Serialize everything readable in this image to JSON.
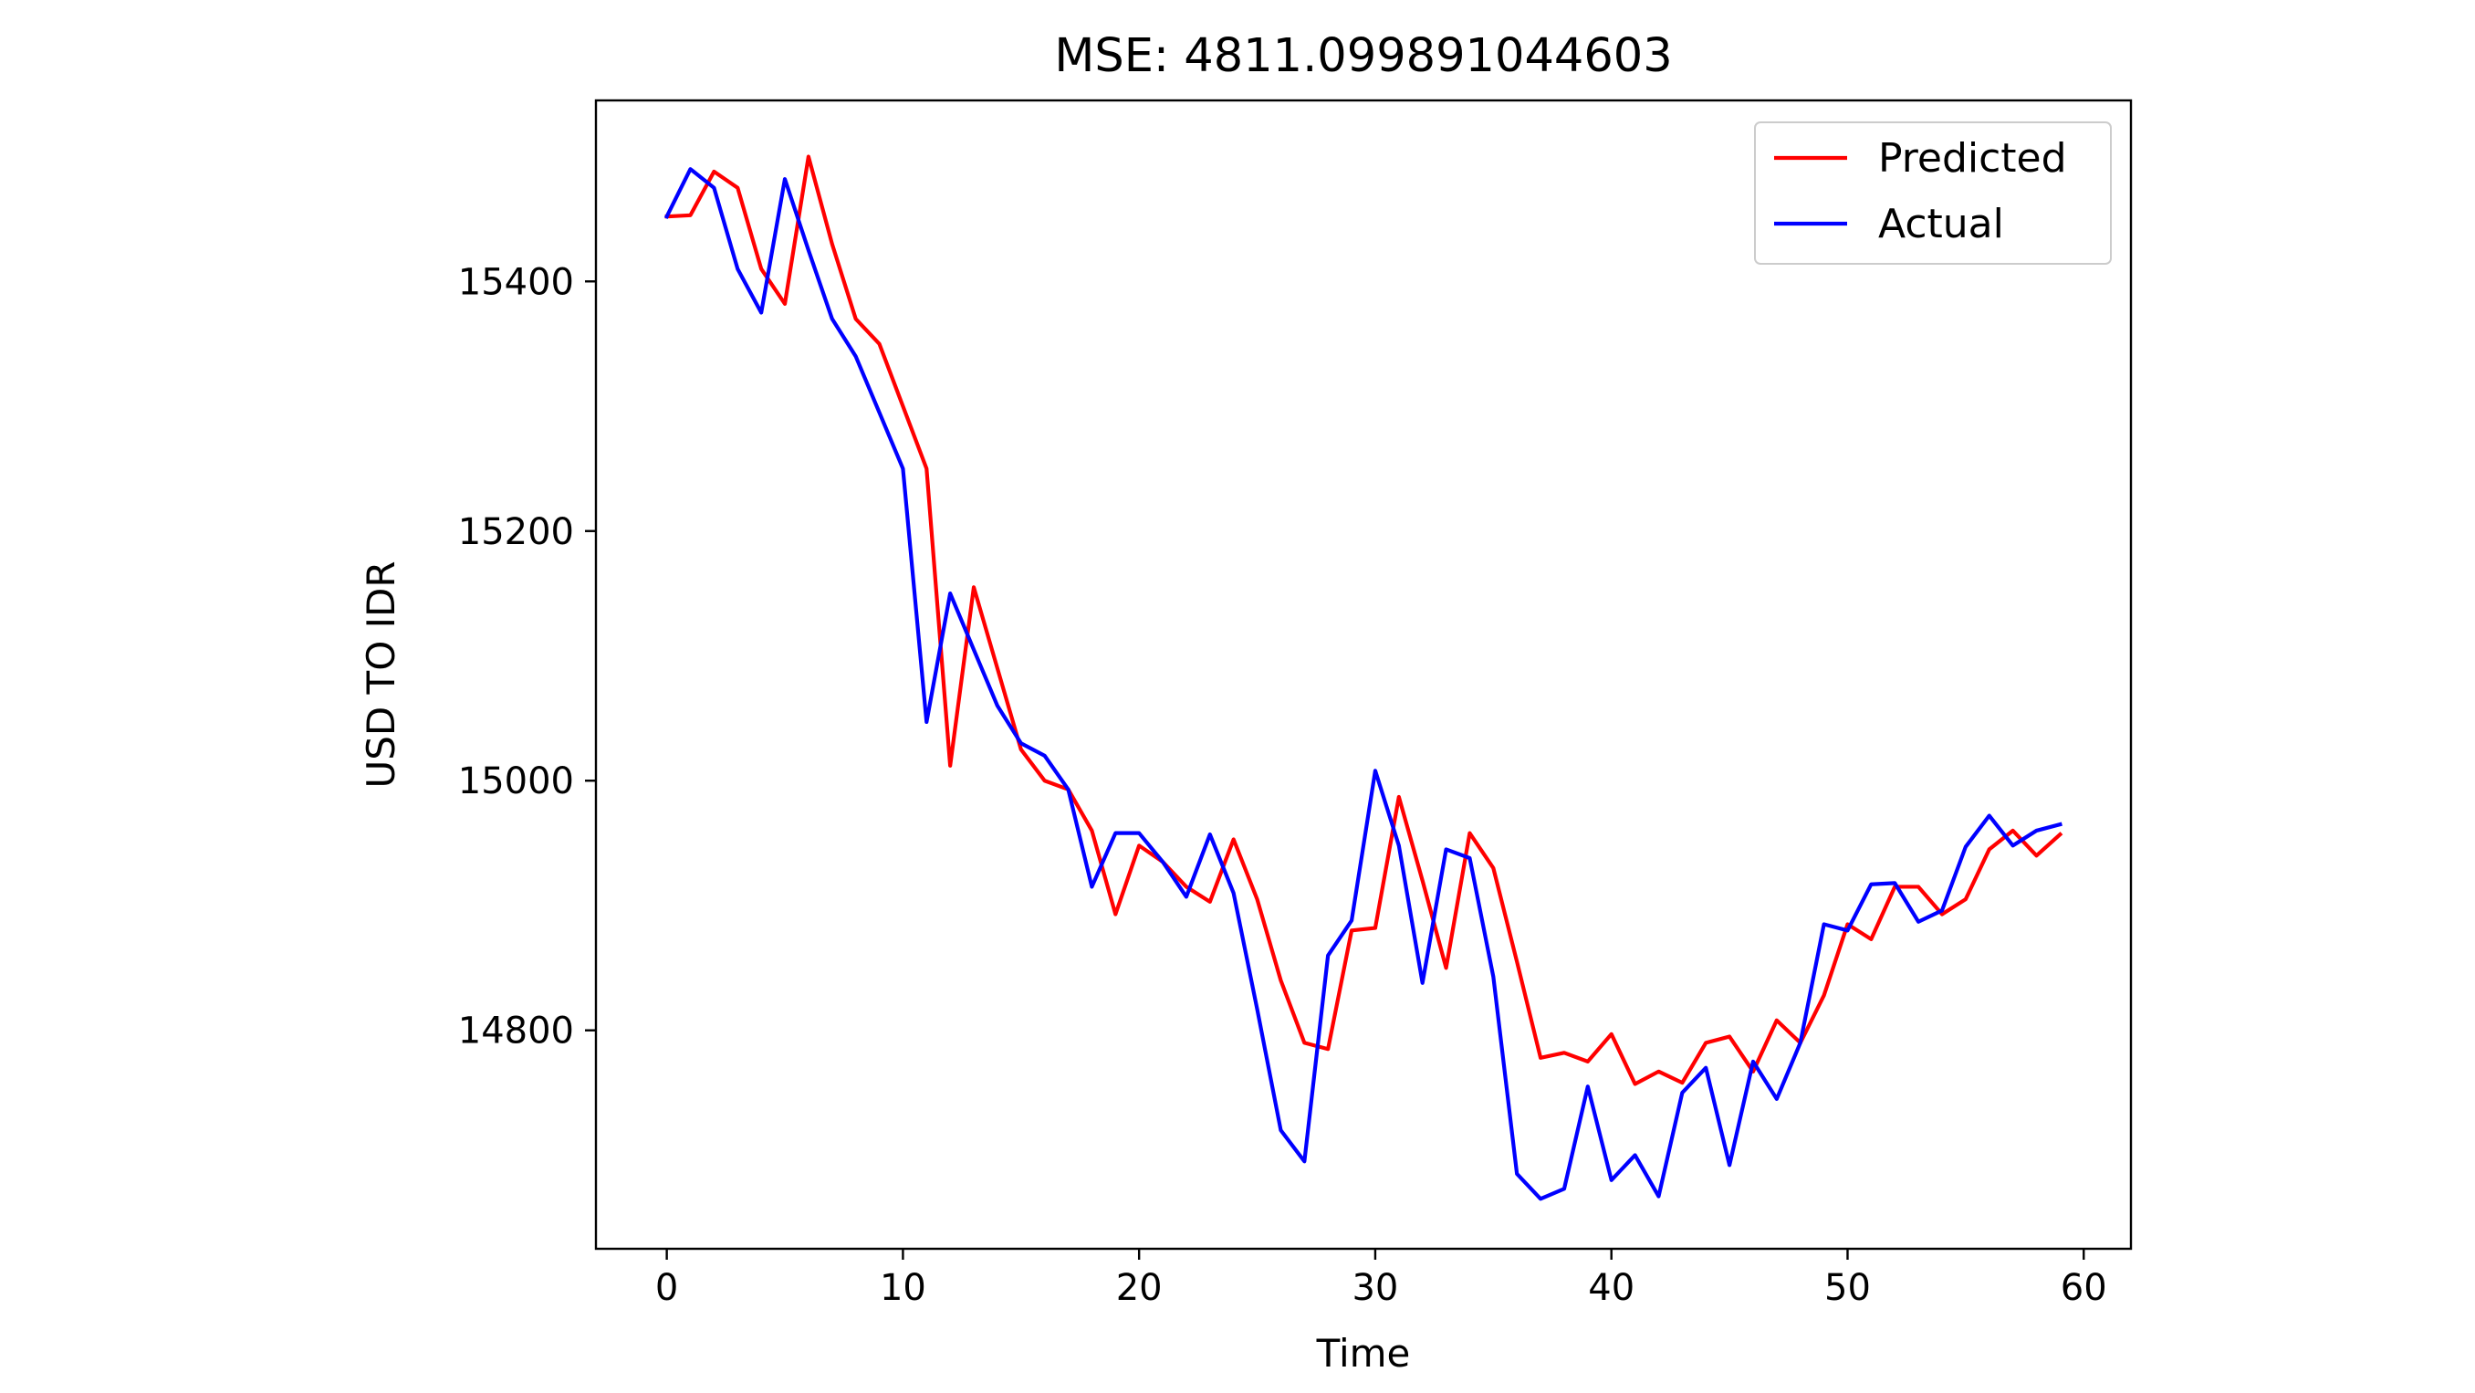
{
  "chart_data": {
    "type": "line",
    "title": "MSE: 4811.099891044603",
    "xlabel": "Time",
    "ylabel": "USD TO IDR",
    "xlim": [
      -3,
      62
    ],
    "ylim": [
      14625,
      15545
    ],
    "xticks": [
      0,
      10,
      20,
      30,
      40,
      50,
      60
    ],
    "yticks": [
      14800,
      15000,
      15200,
      15400
    ],
    "grid": false,
    "legend_position": "upper right",
    "x": [
      0,
      1,
      2,
      3,
      4,
      5,
      6,
      7,
      8,
      9,
      10,
      11,
      12,
      13,
      14,
      15,
      16,
      17,
      18,
      19,
      20,
      21,
      22,
      23,
      24,
      25,
      26,
      27,
      28,
      29,
      30,
      31,
      32,
      33,
      34,
      35,
      36,
      37,
      38,
      39,
      40,
      41,
      42,
      43,
      44,
      45,
      46,
      47,
      48,
      49,
      50,
      51,
      52,
      53,
      54,
      55,
      56,
      57,
      58,
      59
    ],
    "series": [
      {
        "name": "Predicted",
        "color": "#ff0000",
        "values": [
          15452,
          15453,
          15488,
          15475,
          15410,
          15382,
          15500,
          15430,
          15370,
          15350,
          15300,
          15250,
          15012,
          15155,
          15090,
          15025,
          15000,
          14993,
          14960,
          14893,
          14948,
          14935,
          14915,
          14903,
          14953,
          14905,
          14840,
          14790,
          14785,
          14880,
          14882,
          14987,
          14920,
          14850,
          14958,
          14930,
          14855,
          14778,
          14782,
          14775,
          14797,
          14757,
          14767,
          14758,
          14790,
          14795,
          14767,
          14808,
          14790,
          14828,
          14885,
          14873,
          14915,
          14915,
          14893,
          14905,
          14945,
          14960,
          14940,
          14957
        ]
      },
      {
        "name": "Actual",
        "color": "#0000ff",
        "values": [
          15452,
          15490,
          15475,
          15410,
          15375,
          15482,
          15425,
          15370,
          15340,
          15295,
          15250,
          15047,
          15150,
          15105,
          15060,
          15030,
          15020,
          14993,
          14915,
          14958,
          14958,
          14935,
          14907,
          14957,
          14910,
          14817,
          14720,
          14695,
          14860,
          14888,
          15008,
          14948,
          14838,
          14945,
          14938,
          14843,
          14685,
          14665,
          14673,
          14755,
          14680,
          14700,
          14667,
          14750,
          14770,
          14692,
          14775,
          14745,
          14790,
          14885,
          14880,
          14917,
          14918,
          14887,
          14896,
          14947,
          14972,
          14948,
          14960,
          14965
        ]
      }
    ]
  }
}
